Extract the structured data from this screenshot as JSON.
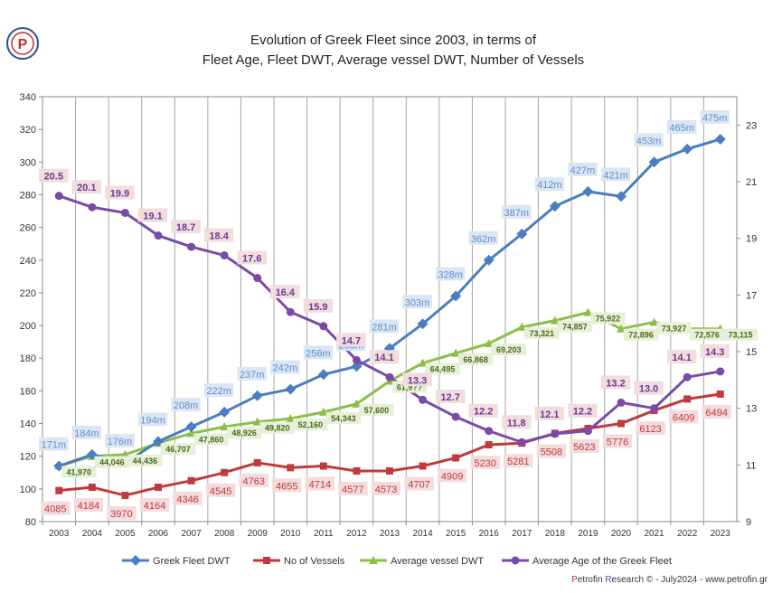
{
  "title_line1": "Evolution of Greek Fleet since 2003, in terms of",
  "title_line2": "Fleet Age, Fleet DWT, Average vessel DWT, Number of Vessels",
  "logo_letter": "P",
  "footer": {
    "brand_p": "P",
    "brand_rest": "etrofin ",
    "research_r": "R",
    "research_rest": "esearch",
    "tail": " © - July2024 - www.petrofin.gr"
  },
  "chart_data": {
    "type": "line",
    "categories": [
      "2003",
      "2004",
      "2005",
      "2006",
      "2007",
      "2008",
      "2009",
      "2010",
      "2011",
      "2012",
      "2013",
      "2014",
      "2015",
      "2016",
      "2017",
      "2018",
      "2019",
      "2020",
      "2021",
      "2022",
      "2023"
    ],
    "left_axis": {
      "min": 80,
      "max": 340,
      "step": 20
    },
    "right_axis": {
      "min": 9,
      "max": 24,
      "ticks": [
        9,
        11,
        13,
        15,
        17,
        19,
        21,
        23
      ]
    },
    "grid": "vertical",
    "legend_position": "bottom",
    "series": [
      {
        "name": "Greek Fleet DWT",
        "color": "#4a7ebf",
        "marker": "diamond",
        "axis": "left",
        "values": [
          114,
          121,
          116,
          129,
          138,
          147,
          157,
          161,
          170,
          175,
          186,
          201,
          218,
          240,
          256,
          273,
          282,
          279,
          300,
          308,
          314
        ],
        "labels": [
          "171m",
          "184m",
          "176m",
          "194m",
          "208m",
          "222m",
          "237m",
          "242m",
          "256m",
          "263m",
          "281m",
          "303m",
          "328m",
          "362m",
          "387m",
          "412m",
          "427m",
          "421m",
          "453m",
          "465m",
          "475m"
        ],
        "label_color": "#5b8fd0",
        "label_bg": "#dce6f2"
      },
      {
        "name": "No of Vessels",
        "color": "#c0393b",
        "marker": "square",
        "axis": "left",
        "values": [
          99,
          101,
          96,
          101,
          105,
          110,
          116,
          113,
          114,
          111,
          111,
          114,
          119,
          127,
          128,
          134,
          137,
          140,
          148,
          155,
          158
        ],
        "labels": [
          "4085",
          "4184",
          "3970",
          "4164",
          "4346",
          "4545",
          "4763",
          "4655",
          "4714",
          "4577",
          "4573",
          "4707",
          "4909",
          "5230",
          "5281",
          "5508",
          "5623",
          "5776",
          "6123",
          "6409",
          "6494"
        ],
        "label_color": "#c0393b",
        "label_bg": "#f4dcdc"
      },
      {
        "name": "Average vessel DWT",
        "color": "#8bbf4a",
        "marker": "triangle",
        "axis": "left",
        "values": [
          114,
          120,
          121,
          128,
          134,
          138,
          141,
          143,
          147,
          152,
          166,
          177,
          183,
          189,
          199,
          203,
          208,
          198,
          202,
          198,
          198
        ],
        "labels": [
          "41,970",
          "44,046",
          "44,436",
          "46,707",
          "47,860",
          "48,926",
          "49,820",
          "52,160",
          "54,343",
          "57,600",
          "61,9??",
          "64,495",
          "66,868",
          "69,203",
          "73,321",
          "74,857",
          "75,922",
          "72,896",
          "73,927",
          "72,576",
          "73,115"
        ],
        "label_color": "#4a6a1a",
        "label_bg": "#e6f0d8"
      },
      {
        "name": "Average Age of the Greek Fleet",
        "color": "#7b4aa6",
        "marker": "circle",
        "axis": "right",
        "values": [
          20.5,
          20.1,
          19.9,
          19.1,
          18.7,
          18.4,
          17.6,
          16.4,
          15.9,
          14.7,
          14.1,
          13.3,
          12.7,
          12.2,
          11.8,
          12.1,
          12.2,
          13.2,
          13.0,
          14.1,
          14.3
        ],
        "labels": [
          "20.5",
          "20.1",
          "19.9",
          "19.1",
          "18.7",
          "18.4",
          "17.6",
          "16.4",
          "15.9",
          "14.7",
          "14.1",
          "13.3",
          "12.7",
          "12.2",
          "11.8",
          "12.1",
          "12.2",
          "13.2",
          "13.0",
          "14.1",
          "14.3"
        ],
        "label_color": "#6a3a96",
        "label_bg": "#f2dcdc"
      }
    ]
  }
}
